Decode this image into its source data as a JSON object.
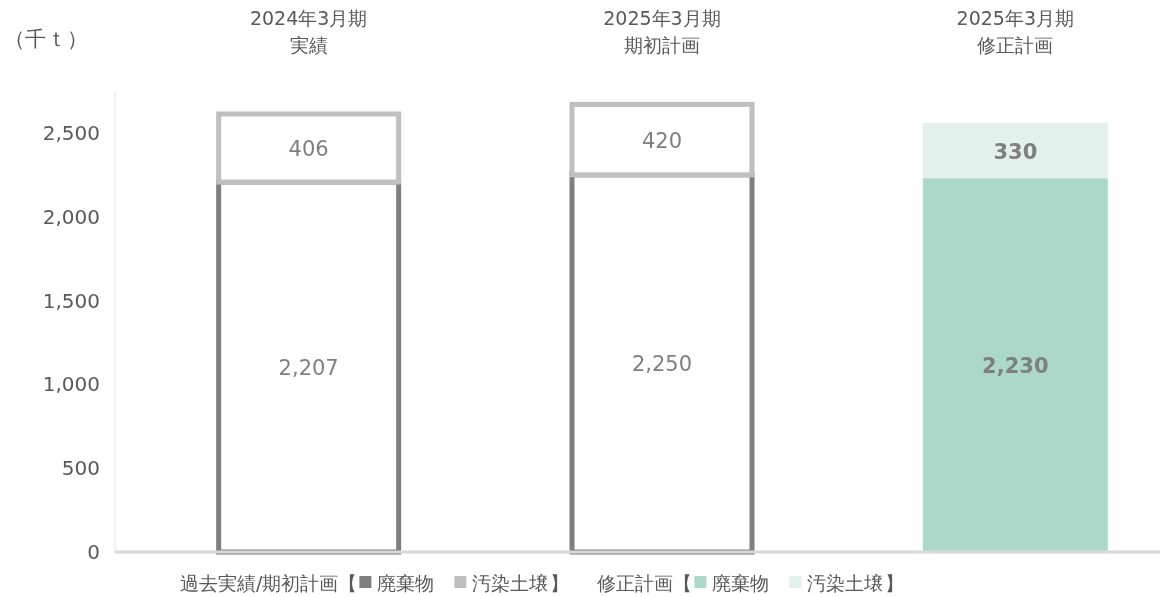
{
  "chart_data": {
    "type": "bar",
    "stacked": true,
    "ylabel": "（千ｔ）",
    "categories": [
      "2024年3月期実績",
      "2025年3月期期初計画",
      "2025年3月期修正計画"
    ],
    "series": [
      {
        "name": "廃棄物",
        "color": "#7f7f7f",
        "line_style": "solid",
        "values": [
          2207,
          2250,
          null
        ],
        "value_labels": [
          "2,207",
          "2,250",
          null
        ]
      },
      {
        "name": "汚染土壌",
        "color": "#bfbfbf",
        "line_style": "solid",
        "values": [
          406,
          420,
          null
        ],
        "value_labels": [
          "406",
          "420",
          null
        ]
      },
      {
        "name": "廃棄物",
        "color": "#acd8c9",
        "values": [
          null,
          null,
          2230
        ],
        "value_labels": [
          null,
          null,
          "2,230"
        ]
      },
      {
        "name": "汚染土壌",
        "color": "#e2f1ec",
        "values": [
          null,
          null,
          330
        ],
        "value_labels": [
          null,
          null,
          "330"
        ]
      }
    ],
    "ylim": [
      0,
      2750
    ],
    "yticks": [
      0,
      500,
      {
        "value": 1000,
        "label": "1,000"
      },
      {
        "value": 1500,
        "label": "1,500"
      },
      {
        "value": 2000,
        "label": "2,000"
      },
      {
        "value": 2500,
        "label": "2,500"
      }
    ],
    "legend": "bottom",
    "grid": false,
    "annotations": [
      "過去実績/期初計画【",
      "】",
      "修正計画【",
      "】"
    ]
  }
}
